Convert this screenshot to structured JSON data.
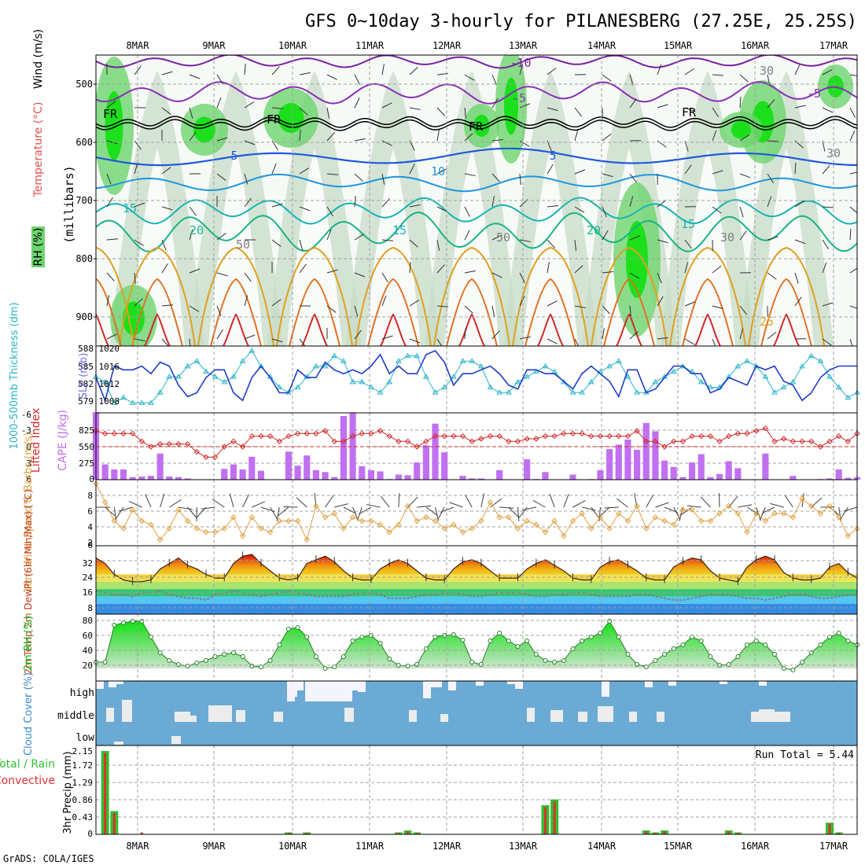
{
  "title": "GFS 0~10day 3-hourly for PILANESBERG (27.25E, 25.25S)",
  "credit": "GrADS: COLA/IGES",
  "colors": {
    "frame": "#000000",
    "grid": "#a0a0a0",
    "rh_light": "#e6f2e6",
    "rh_mid": "#c8dcc8",
    "rh_green": "#6ed46e",
    "rh_bright": "#10e010",
    "temp_neg10": "#7a1fa2",
    "temp_neg5": "#8a2fb8",
    "temp_0": "#000000",
    "temp_5": "#1e5adc",
    "temp_10": "#1e96dc",
    "temp_15": "#18b4b4",
    "temp_20": "#18b484",
    "temp_25": "#e0a020",
    "temp_30": "#e07020",
    "temp_35": "#d02828",
    "slp": "#1e3cc8",
    "thick": "#28b4c8",
    "cape": "#c070f0",
    "li": "#d02828",
    "wind": "#e0a040",
    "barb": "#404040",
    "dew": "#808080",
    "rh2m_top": "#10e010",
    "rh2m_bot": "#d4e4d4",
    "cloud_bg": "#6aaad4",
    "cloud": "#ececec",
    "cloud_high": "#f4f4fc",
    "precip_total": "#30c030",
    "precip_conv": "#e03030"
  },
  "chart_data": [
    {
      "panel": "upper-air",
      "type": "contour",
      "x_ticks": [
        "8MAR",
        "9MAR",
        "10MAR",
        "11MAR",
        "12MAR",
        "13MAR",
        "14MAR",
        "15MAR",
        "16MAR",
        "17MAR"
      ],
      "ylabel": "(millibars)",
      "legend_labels": [
        "Wind (m/s)",
        "Temperature (°C)",
        "RH (%)"
      ],
      "y_ticks": [
        "500",
        "600",
        "700",
        "800",
        "900"
      ],
      "ylim": [
        450,
        950
      ],
      "contour_labels": [
        "-10",
        "-5",
        "-5",
        "FR",
        "FR",
        "FR",
        "FR",
        "5",
        "5",
        "10",
        "15",
        "15",
        "20",
        "20",
        "15",
        "25",
        "30",
        "30",
        "50",
        "50",
        "30"
      ]
    },
    {
      "panel": "slp-thickness",
      "type": "line",
      "ylabel_left": "1000-500mb Thickness (dm)",
      "ylabel_right": "SLP (mb)",
      "left_ticks": [
        "588",
        "585",
        "582",
        "579"
      ],
      "right_ticks": [
        "1020",
        "1016",
        "1012",
        "1008"
      ],
      "slp_range": [
        1005,
        1020
      ],
      "thick_range": [
        577,
        588
      ],
      "series": [
        {
          "name": "SLP",
          "values": [
            1013,
            1007,
            1016,
            1015,
            1015,
            1016,
            1014,
            1017,
            1016,
            1011,
            1008,
            1009,
            1013,
            1015,
            1015,
            1009,
            1007,
            1013,
            1016,
            1013,
            1009,
            1009,
            1015,
            1013,
            1013,
            1017,
            1015,
            1014,
            1015,
            1014,
            1016,
            1019,
            1014,
            1016,
            1014,
            1014,
            1019,
            1020,
            1017,
            1011,
            1014,
            1014,
            1015,
            1016,
            1014,
            1011,
            1010,
            1015,
            1015,
            1014,
            1014,
            1012,
            1010,
            1014,
            1016,
            1014,
            1012,
            1008,
            1015,
            1015,
            1009,
            1010,
            1013,
            1016,
            1016,
            1014,
            1014,
            1009,
            1010,
            1013,
            1012,
            1011,
            1016,
            1015,
            1016,
            1012,
            1011,
            1007,
            1009,
            1013,
            1015,
            1016,
            1016,
            1016
          ]
        },
        {
          "name": "Thickness",
          "values": [
            583,
            582,
            578,
            579,
            578,
            578,
            578,
            580,
            583,
            583,
            585,
            586,
            584,
            583,
            582,
            583,
            586,
            588,
            585,
            583,
            581,
            580,
            581,
            583,
            585,
            585,
            587,
            586,
            582,
            582,
            581,
            580,
            582,
            586,
            587,
            587,
            583,
            580,
            581,
            583,
            586,
            586,
            585,
            581,
            580,
            580,
            582,
            583,
            584,
            585,
            584,
            582,
            580,
            580,
            582,
            584,
            585,
            586,
            583,
            580,
            580,
            582,
            583,
            584,
            585,
            584,
            582,
            581,
            581,
            583,
            585,
            586,
            585,
            583,
            580,
            581,
            582,
            585,
            587,
            586,
            583,
            581,
            579,
            580
          ]
        }
      ]
    },
    {
      "panel": "cape-li",
      "type": "bar",
      "ylabel_left": "Lifted Index",
      "ylabel_right": "CAPE (J/kg)",
      "li_ticks": [
        "-6",
        "-3",
        "0",
        "3",
        "6"
      ],
      "cape_ticks": [
        "825",
        "550",
        "275",
        "0"
      ],
      "cape_range": [
        0,
        1000
      ],
      "li_range": [
        -6,
        6
      ],
      "series": [
        {
          "name": "CAPE",
          "values": [
            1060,
            240,
            160,
            160,
            40,
            50,
            60,
            410,
            50,
            40,
            20,
            0,
            0,
            0,
            170,
            240,
            160,
            360,
            140,
            0,
            0,
            440,
            220,
            380,
            150,
            120,
            40,
            1000,
            1050,
            210,
            150,
            130,
            10,
            80,
            70,
            270,
            540,
            880,
            430,
            0,
            60,
            20,
            20,
            0,
            150,
            0,
            0,
            320,
            10,
            120,
            0,
            0,
            80,
            0,
            10,
            150,
            480,
            550,
            630,
            470,
            890,
            760,
            300,
            200,
            40,
            270,
            400,
            40,
            90,
            290,
            180,
            0,
            0,
            410,
            0,
            0,
            60,
            0,
            0,
            10,
            20,
            160,
            30,
            40
          ]
        },
        {
          "name": "Lifted Index",
          "values": [
            -3,
            -2.5,
            -2.5,
            -2.5,
            -2.5,
            -1,
            0,
            -0.5,
            -0.5,
            -0.5,
            -0.5,
            1,
            2,
            2,
            0,
            -1,
            0,
            -2,
            -2,
            -2,
            -1,
            -2,
            -2.5,
            -2.5,
            -2.5,
            -3,
            -1,
            -1,
            -2,
            -2.5,
            -2.5,
            -3,
            -2,
            -1,
            -1,
            0,
            -1,
            -2,
            -2,
            -2,
            -2,
            -1,
            -1.5,
            -2,
            -2,
            -1,
            -1,
            -1.5,
            -1.5,
            -2,
            -2,
            -2.5,
            -2.5,
            -2.5,
            -2,
            -2,
            -2,
            -2,
            -2,
            -3,
            -1,
            -1,
            0,
            -1,
            -1,
            -2,
            -2,
            -2,
            -1,
            -2,
            -2.5,
            -2.5,
            -3,
            -3.5,
            -1,
            -1.5,
            -1,
            -1,
            -1,
            0,
            -1,
            -2,
            -1,
            -2.5
          ]
        }
      ]
    },
    {
      "panel": "wind10m",
      "type": "line",
      "ylabel": "10m Wind Speed & Barbs (m/s)",
      "y_ticks": [
        "8",
        "6",
        "4",
        "2",
        "0"
      ],
      "ylim": [
        0,
        8
      ],
      "series": [
        {
          "name": "Wind speed",
          "values": [
            8,
            5.5,
            3,
            2,
            4.5,
            3,
            2.5,
            0.5,
            2,
            4.5,
            3,
            2,
            1.5,
            1.5,
            2,
            3.5,
            1,
            3.5,
            2,
            1.5,
            3,
            3,
            3,
            0.5,
            5,
            3.5,
            4,
            2,
            3.5,
            3,
            3,
            2.5,
            1.5,
            2.5,
            5,
            3,
            3.5,
            3,
            2,
            2.5,
            1.5,
            2,
            3,
            5.5,
            3.5,
            3.5,
            2,
            3,
            2.5,
            1.5,
            3,
            1,
            3,
            4,
            2,
            3.5,
            2,
            4,
            3,
            5,
            2,
            3.5,
            3,
            2.5,
            4.5,
            4.5,
            3,
            3,
            4,
            5,
            4,
            1.5,
            4,
            3,
            4,
            4,
            3.5,
            6,
            5,
            4,
            5,
            3.5,
            1,
            2
          ]
        }
      ]
    },
    {
      "panel": "temp2m",
      "type": "area",
      "ylabel": "2m Temp 2m DewPt (6hr Min/Max) (°C)",
      "y_ticks": [
        "32",
        "24",
        "16",
        "8"
      ],
      "ylim": [
        4,
        38
      ],
      "series": [
        {
          "name": "2m Temp",
          "values": [
            33,
            30,
            24,
            21,
            20,
            20,
            21,
            27,
            30,
            33,
            29,
            27,
            24,
            22,
            22,
            30,
            34,
            35,
            30,
            26,
            22,
            21,
            22,
            30,
            32,
            34,
            31,
            26,
            22,
            21,
            21,
            27,
            30,
            32,
            30,
            26,
            22,
            21,
            21,
            27,
            31,
            32,
            30,
            26,
            22,
            22,
            22,
            27,
            30,
            32,
            29,
            26,
            22,
            21,
            21,
            28,
            31,
            32,
            29,
            26,
            22,
            21,
            21,
            28,
            31,
            33,
            32,
            26,
            22,
            21,
            20,
            28,
            32,
            34,
            32,
            25,
            22,
            21,
            21,
            22,
            28,
            30,
            25,
            22
          ]
        },
        {
          "name": "2m DewPt",
          "values": [
            15,
            14,
            13,
            13,
            12,
            14,
            14,
            15,
            13,
            12,
            11,
            11,
            10,
            13,
            14,
            15,
            14,
            13,
            12,
            13,
            14,
            15,
            14,
            13,
            12,
            12,
            12,
            12,
            13,
            14,
            14,
            13,
            11,
            11,
            11,
            12,
            13,
            13,
            14,
            14,
            13,
            12,
            12,
            13,
            14,
            14,
            14,
            13,
            12,
            12,
            13,
            13,
            14,
            14,
            13,
            12,
            12,
            12,
            12,
            13,
            13,
            12,
            11,
            10,
            10,
            11,
            12,
            13,
            13,
            13,
            12,
            11,
            11,
            10,
            11,
            12,
            13,
            13,
            12,
            11,
            11,
            12,
            13,
            13
          ]
        }
      ]
    },
    {
      "panel": "rh2m",
      "type": "area",
      "ylabel": "2m RH (%)",
      "y_ticks": [
        "80",
        "60",
        "40",
        "20"
      ],
      "ylim": [
        10,
        85
      ],
      "series": [
        {
          "name": "2m RH",
          "values": [
            28,
            28,
            75,
            78,
            80,
            80,
            60,
            40,
            30,
            25,
            23,
            27,
            30,
            35,
            38,
            40,
            35,
            23,
            22,
            30,
            50,
            70,
            72,
            60,
            35,
            20,
            22,
            35,
            55,
            60,
            62,
            52,
            32,
            24,
            23,
            25,
            45,
            60,
            62,
            63,
            56,
            28,
            25,
            55,
            65,
            55,
            48,
            55,
            38,
            30,
            28,
            30,
            45,
            55,
            60,
            65,
            80,
            60,
            38,
            25,
            22,
            30,
            38,
            45,
            50,
            60,
            55,
            35,
            24,
            25,
            35,
            50,
            55,
            50,
            38,
            20,
            18,
            28,
            40,
            50,
            60,
            65,
            55,
            50
          ]
        }
      ]
    },
    {
      "panel": "cloud-cover",
      "type": "heatmap",
      "ylabel": "Cloud Cover (%)",
      "levels": [
        "high",
        "middle",
        "low"
      ]
    },
    {
      "panel": "precip",
      "type": "bar",
      "ylabel": "3hr Precip (mm)",
      "legend_labels": [
        "Total / Rain",
        "Convective"
      ],
      "y_ticks": [
        "2.15",
        "1.72",
        "1.29",
        "0.86",
        "0.43",
        "0"
      ],
      "ylim": [
        0,
        2.15
      ],
      "run_total": "Run Total = 5.44",
      "series": [
        {
          "name": "Total",
          "values": [
            0,
            2.15,
            0.6,
            0,
            0,
            0,
            0,
            0,
            0,
            0,
            0,
            0,
            0,
            0,
            0,
            0,
            0,
            0,
            0,
            0,
            0,
            0.05,
            0,
            0.05,
            0,
            0,
            0,
            0,
            0,
            0,
            0,
            0,
            0,
            0.05,
            0.1,
            0.05,
            0,
            0,
            0,
            0,
            0,
            0,
            0,
            0,
            0,
            0,
            0,
            0,
            0,
            0.75,
            0.9,
            0,
            0,
            0,
            0,
            0,
            0,
            0,
            0,
            0,
            0.1,
            0.05,
            0.1,
            0,
            0,
            0,
            0,
            0,
            0,
            0.1,
            0.05,
            0,
            0,
            0,
            0,
            0,
            0,
            0,
            0,
            0,
            0.3,
            0.05,
            0,
            0
          ]
        },
        {
          "name": "Convective",
          "values": [
            0,
            2.1,
            0.55,
            0,
            0,
            0.05,
            0,
            0,
            0,
            0,
            0,
            0,
            0,
            0,
            0,
            0,
            0,
            0,
            0,
            0,
            0,
            0.04,
            0,
            0.04,
            0,
            0,
            0,
            0,
            0,
            0,
            0,
            0,
            0,
            0.04,
            0.08,
            0.04,
            0,
            0,
            0,
            0,
            0,
            0,
            0,
            0,
            0,
            0,
            0,
            0,
            0,
            0.7,
            0.85,
            0,
            0,
            0,
            0,
            0,
            0,
            0,
            0,
            0,
            0.08,
            0.04,
            0.08,
            0,
            0,
            0,
            0,
            0,
            0,
            0.08,
            0.04,
            0,
            0,
            0,
            0,
            0,
            0,
            0,
            0,
            0,
            0.28,
            0.04,
            0,
            0
          ]
        }
      ]
    }
  ]
}
